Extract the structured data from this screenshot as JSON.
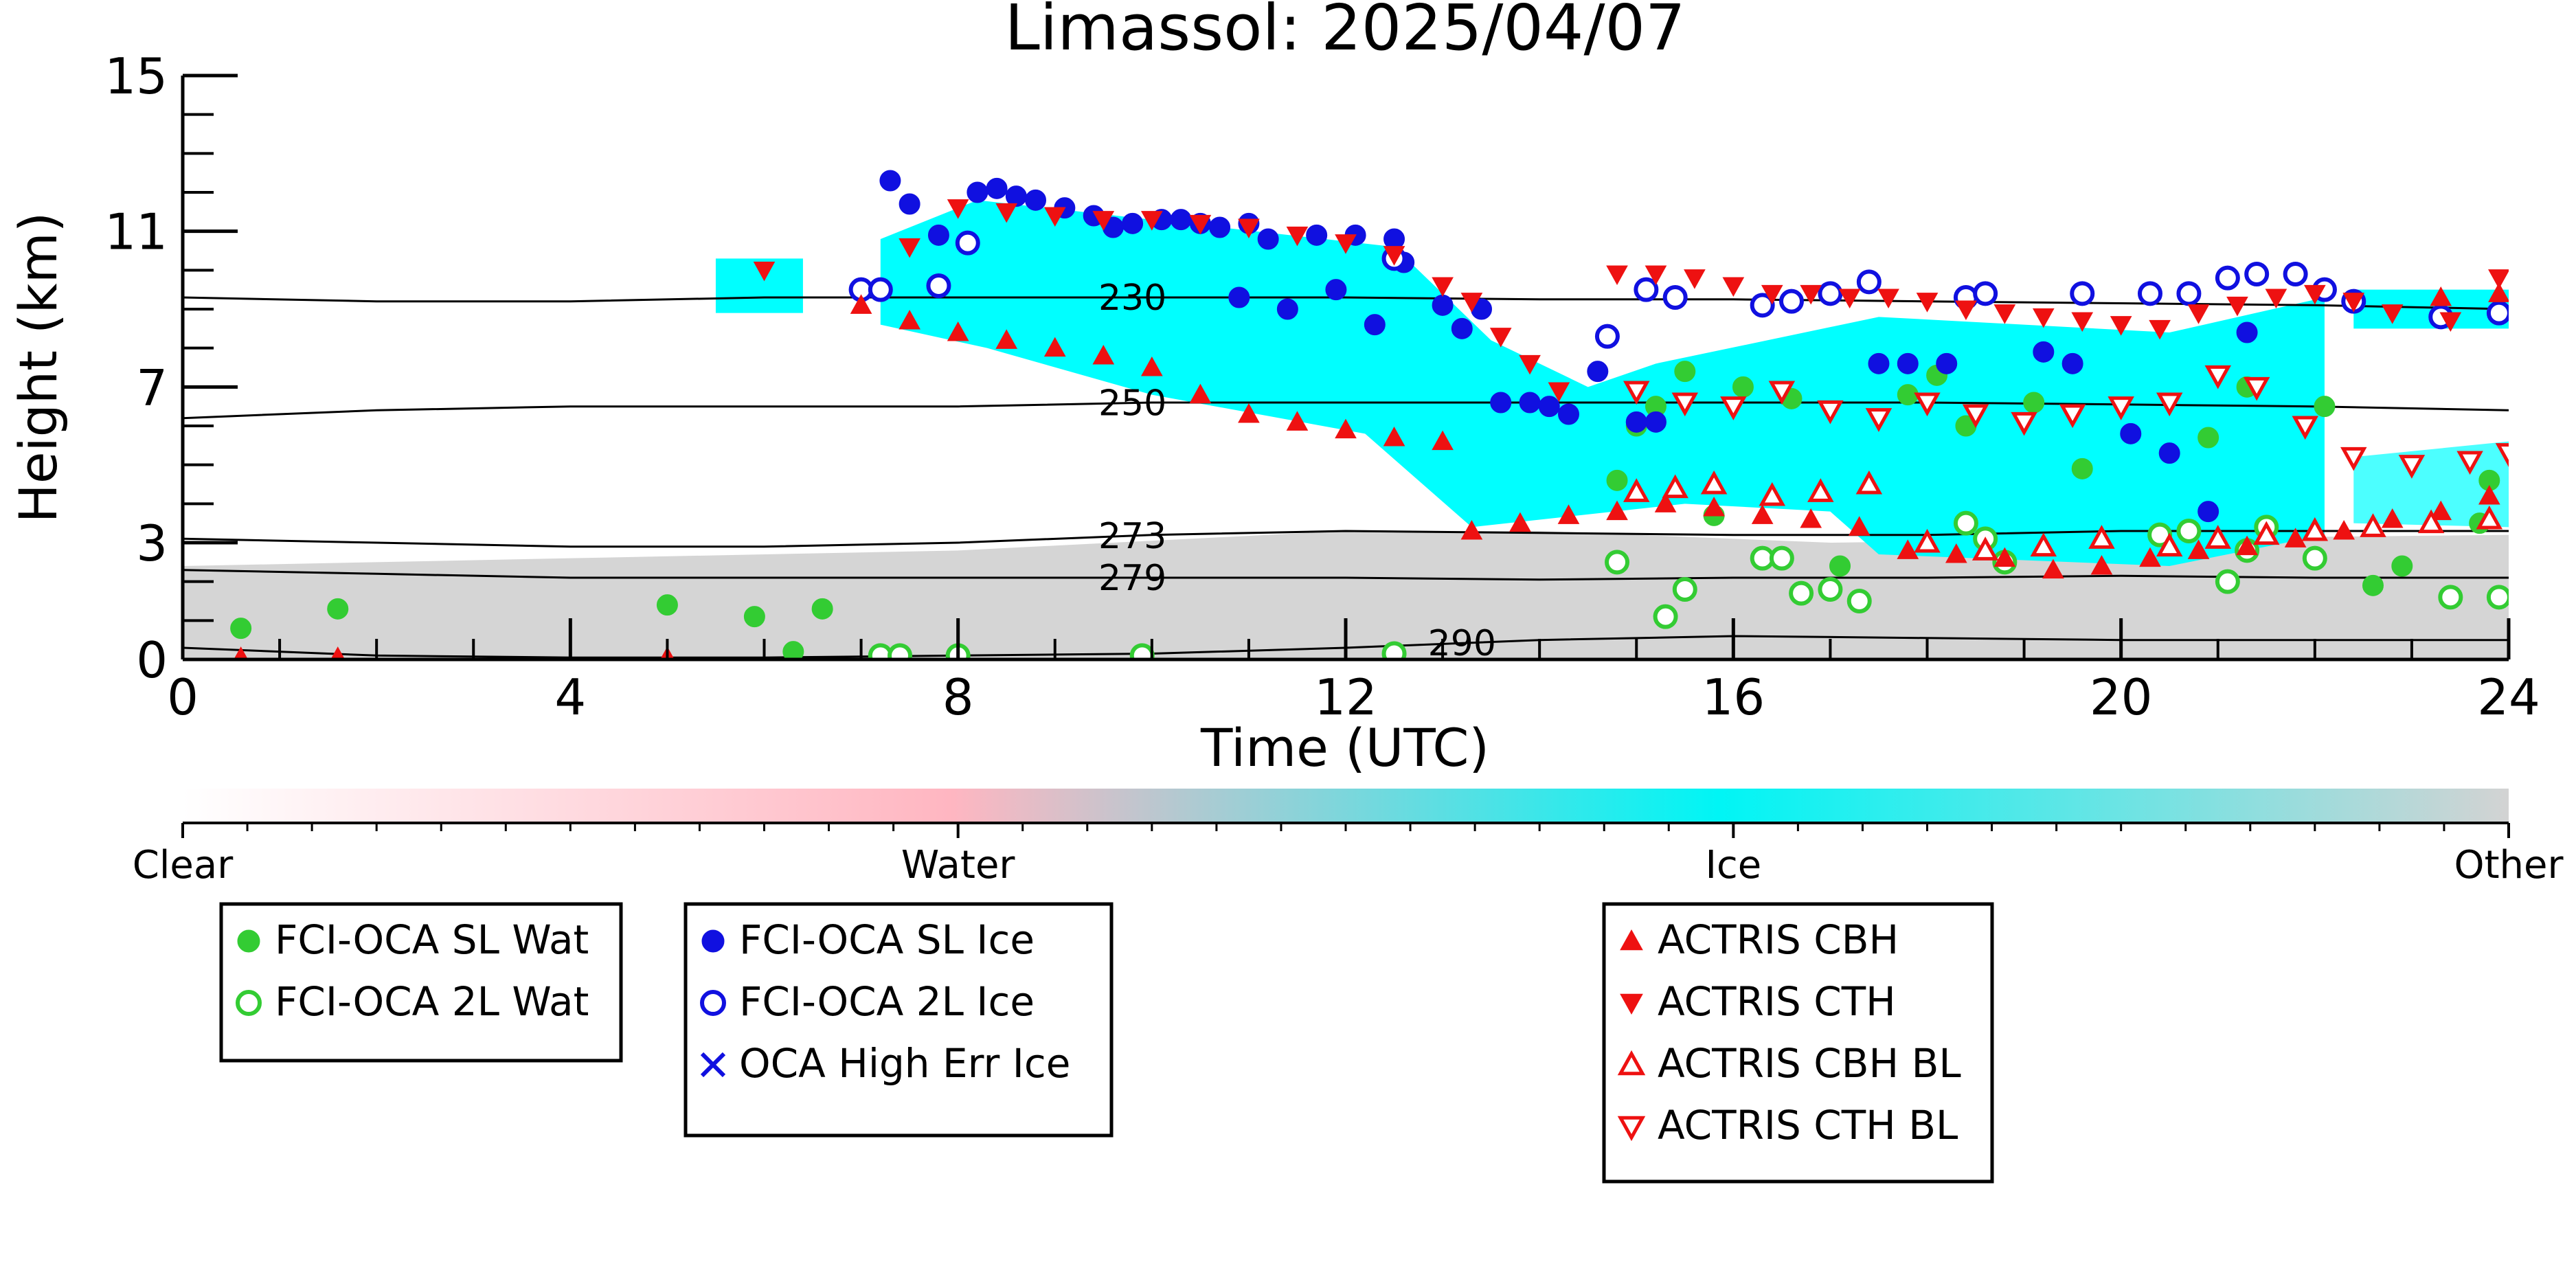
{
  "chart_data": {
    "type": "scatter",
    "title": "Limassol: 2025/04/07",
    "xlabel": "Time (UTC)",
    "ylabel": "Height (km)",
    "xlim": [
      0,
      24
    ],
    "ylim": [
      0,
      15
    ],
    "x_ticks": [
      "0",
      "4",
      "8",
      "12",
      "16",
      "20",
      "24"
    ],
    "y_ticks": [
      "0",
      "3",
      "7",
      "11",
      "15"
    ],
    "grid": false,
    "colorbar": {
      "labels": [
        "Clear",
        "Water",
        "Ice",
        "Other"
      ],
      "colors": [
        "#ffffff",
        "#ffb6c1",
        "#00ffff",
        "#d3d3d3"
      ]
    },
    "contours": [
      {
        "label": "230",
        "label_x": 9.8,
        "x": [
          0,
          2,
          4,
          6,
          8,
          10,
          12,
          14,
          16,
          18,
          20,
          22,
          24
        ],
        "y": [
          9.3,
          9.2,
          9.2,
          9.3,
          9.3,
          9.3,
          9.3,
          9.25,
          9.25,
          9.2,
          9.15,
          9.1,
          9.0
        ]
      },
      {
        "label": "250",
        "label_x": 9.8,
        "x": [
          0,
          2,
          4,
          6,
          8,
          10,
          12,
          14,
          16,
          18,
          20,
          22,
          24
        ],
        "y": [
          6.2,
          6.4,
          6.5,
          6.5,
          6.5,
          6.6,
          6.6,
          6.6,
          6.6,
          6.6,
          6.55,
          6.5,
          6.4
        ]
      },
      {
        "label": "273",
        "label_x": 9.8,
        "x": [
          0,
          2,
          4,
          6,
          8,
          10,
          12,
          14,
          16,
          18,
          20,
          22,
          24
        ],
        "y": [
          3.1,
          3.0,
          2.9,
          2.9,
          3.0,
          3.2,
          3.3,
          3.25,
          3.2,
          3.2,
          3.3,
          3.3,
          3.3
        ]
      },
      {
        "label": "279",
        "label_x": 9.8,
        "x": [
          0,
          2,
          4,
          6,
          8,
          10,
          12,
          14,
          16,
          18,
          20,
          22,
          24
        ],
        "y": [
          2.3,
          2.2,
          2.1,
          2.1,
          2.1,
          2.1,
          2.1,
          2.05,
          2.1,
          2.1,
          2.15,
          2.1,
          2.1
        ]
      },
      {
        "label": "290",
        "label_x": 13.2,
        "x": [
          0,
          2,
          4,
          6,
          8,
          10,
          12,
          14,
          16,
          18,
          20,
          22,
          24
        ],
        "y": [
          0.3,
          0.1,
          0.05,
          0.05,
          0.1,
          0.15,
          0.3,
          0.5,
          0.6,
          0.55,
          0.5,
          0.5,
          0.5
        ]
      }
    ],
    "series": [
      {
        "name": "FCI-OCA SL Wat",
        "color": "#33cc33",
        "marker": "circle-filled",
        "points": [
          [
            0.6,
            0.8
          ],
          [
            1.6,
            1.3
          ],
          [
            5.0,
            1.4
          ],
          [
            5.9,
            1.1
          ],
          [
            6.3,
            0.2
          ],
          [
            6.6,
            1.3
          ],
          [
            14.8,
            4.6
          ],
          [
            15.0,
            6.0
          ],
          [
            15.2,
            6.5
          ],
          [
            15.5,
            7.4
          ],
          [
            15.8,
            3.7
          ],
          [
            16.1,
            7.0
          ],
          [
            16.6,
            6.7
          ],
          [
            17.1,
            2.4
          ],
          [
            17.8,
            6.8
          ],
          [
            18.1,
            7.3
          ],
          [
            18.4,
            6.0
          ],
          [
            19.1,
            6.6
          ],
          [
            19.6,
            4.9
          ],
          [
            20.9,
            5.7
          ],
          [
            21.3,
            7.0
          ],
          [
            22.1,
            6.5
          ],
          [
            22.6,
            1.9
          ],
          [
            22.9,
            2.4
          ],
          [
            23.7,
            3.5
          ],
          [
            23.8,
            4.6
          ]
        ]
      },
      {
        "name": "FCI-OCA 2L Wat",
        "color": "#33cc33",
        "marker": "circle-open",
        "points": [
          [
            7.2,
            0.1
          ],
          [
            7.4,
            0.1
          ],
          [
            8.0,
            0.1
          ],
          [
            9.9,
            0.1
          ],
          [
            12.5,
            0.15
          ],
          [
            14.8,
            2.5
          ],
          [
            15.3,
            1.1
          ],
          [
            15.5,
            1.8
          ],
          [
            16.3,
            2.6
          ],
          [
            16.5,
            2.6
          ],
          [
            16.7,
            1.7
          ],
          [
            17.0,
            1.8
          ],
          [
            17.3,
            1.5
          ],
          [
            18.4,
            3.5
          ],
          [
            18.6,
            3.1
          ],
          [
            18.8,
            2.5
          ],
          [
            20.4,
            3.2
          ],
          [
            20.7,
            3.3
          ],
          [
            21.1,
            2.0
          ],
          [
            21.3,
            2.8
          ],
          [
            21.5,
            3.4
          ],
          [
            22.0,
            2.6
          ],
          [
            23.4,
            1.6
          ],
          [
            23.9,
            1.6
          ]
        ]
      },
      {
        "name": "FCI-OCA SL Ice",
        "color": "#1010e0",
        "marker": "circle-filled",
        "points": [
          [
            7.3,
            12.3
          ],
          [
            7.5,
            11.7
          ],
          [
            7.8,
            10.9
          ],
          [
            8.2,
            12.0
          ],
          [
            8.4,
            12.1
          ],
          [
            8.6,
            11.9
          ],
          [
            8.8,
            11.8
          ],
          [
            9.1,
            11.6
          ],
          [
            9.4,
            11.4
          ],
          [
            9.6,
            11.1
          ],
          [
            9.8,
            11.2
          ],
          [
            10.1,
            11.3
          ],
          [
            10.3,
            11.3
          ],
          [
            10.5,
            11.2
          ],
          [
            10.7,
            11.1
          ],
          [
            10.9,
            9.3
          ],
          [
            11.0,
            11.2
          ],
          [
            11.2,
            10.8
          ],
          [
            11.4,
            9.0
          ],
          [
            11.7,
            10.9
          ],
          [
            11.9,
            9.5
          ],
          [
            12.1,
            10.9
          ],
          [
            12.3,
            8.6
          ],
          [
            12.5,
            10.8
          ],
          [
            12.6,
            10.2
          ],
          [
            13.0,
            9.1
          ],
          [
            13.2,
            8.5
          ],
          [
            13.4,
            9.0
          ],
          [
            13.6,
            6.6
          ],
          [
            13.9,
            6.6
          ],
          [
            14.1,
            6.5
          ],
          [
            14.3,
            6.3
          ],
          [
            14.6,
            7.4
          ],
          [
            15.0,
            6.1
          ],
          [
            15.2,
            6.1
          ],
          [
            17.5,
            7.6
          ],
          [
            17.8,
            7.6
          ],
          [
            18.2,
            7.6
          ],
          [
            19.2,
            7.9
          ],
          [
            19.5,
            7.6
          ],
          [
            20.1,
            5.8
          ],
          [
            20.5,
            5.3
          ],
          [
            20.9,
            3.8
          ],
          [
            21.3,
            8.4
          ]
        ]
      },
      {
        "name": "FCI-OCA 2L Ice",
        "color": "#1010e0",
        "marker": "circle-open",
        "points": [
          [
            7.0,
            9.5
          ],
          [
            7.2,
            9.5
          ],
          [
            7.8,
            9.6
          ],
          [
            8.1,
            10.7
          ],
          [
            12.5,
            10.3
          ],
          [
            14.7,
            8.3
          ],
          [
            15.1,
            9.5
          ],
          [
            15.4,
            9.3
          ],
          [
            16.3,
            9.1
          ],
          [
            16.6,
            9.2
          ],
          [
            17.0,
            9.4
          ],
          [
            17.4,
            9.7
          ],
          [
            18.4,
            9.3
          ],
          [
            18.6,
            9.4
          ],
          [
            19.6,
            9.4
          ],
          [
            20.3,
            9.4
          ],
          [
            20.7,
            9.4
          ],
          [
            21.1,
            9.8
          ],
          [
            21.4,
            9.9
          ],
          [
            21.8,
            9.9
          ],
          [
            22.1,
            9.5
          ],
          [
            22.4,
            9.2
          ],
          [
            23.3,
            8.8
          ],
          [
            23.9,
            8.9
          ]
        ]
      },
      {
        "name": "OCA High Err Ice",
        "color": "#1010e0",
        "marker": "x",
        "points": []
      },
      {
        "name": "ACTRIS CBH",
        "color": "#ee1111",
        "marker": "triangle-up-filled",
        "points": [
          [
            0.6,
            0.05
          ],
          [
            1.6,
            0.05
          ],
          [
            5.0,
            0.05
          ],
          [
            7.0,
            9.1
          ],
          [
            7.5,
            8.7
          ],
          [
            8.0,
            8.4
          ],
          [
            8.5,
            8.2
          ],
          [
            9.0,
            8.0
          ],
          [
            9.5,
            7.8
          ],
          [
            10.0,
            7.5
          ],
          [
            10.5,
            6.8
          ],
          [
            11.0,
            6.3
          ],
          [
            11.5,
            6.1
          ],
          [
            12.0,
            5.9
          ],
          [
            12.5,
            5.7
          ],
          [
            13.0,
            5.6
          ],
          [
            13.3,
            3.3
          ],
          [
            13.8,
            3.5
          ],
          [
            14.3,
            3.7
          ],
          [
            14.8,
            3.8
          ],
          [
            15.3,
            4.0
          ],
          [
            15.8,
            3.9
          ],
          [
            16.3,
            3.7
          ],
          [
            16.8,
            3.6
          ],
          [
            17.3,
            3.4
          ],
          [
            17.8,
            2.8
          ],
          [
            18.3,
            2.7
          ],
          [
            18.8,
            2.6
          ],
          [
            19.3,
            2.3
          ],
          [
            19.8,
            2.4
          ],
          [
            20.3,
            2.6
          ],
          [
            20.8,
            2.8
          ],
          [
            21.3,
            2.9
          ],
          [
            21.8,
            3.1
          ],
          [
            22.3,
            3.3
          ],
          [
            22.8,
            3.6
          ],
          [
            23.3,
            3.8
          ],
          [
            23.8,
            4.2
          ],
          [
            23.3,
            9.3
          ],
          [
            23.9,
            9.4
          ]
        ]
      },
      {
        "name": "ACTRIS CTH",
        "color": "#ee1111",
        "marker": "triangle-down-filled",
        "points": [
          [
            6.0,
            10.0
          ],
          [
            7.5,
            10.6
          ],
          [
            8.0,
            11.6
          ],
          [
            8.5,
            11.5
          ],
          [
            9.0,
            11.4
          ],
          [
            9.5,
            11.3
          ],
          [
            10.0,
            11.3
          ],
          [
            10.5,
            11.2
          ],
          [
            11.0,
            11.1
          ],
          [
            11.5,
            10.9
          ],
          [
            12.0,
            10.7
          ],
          [
            12.5,
            10.4
          ],
          [
            13.0,
            9.6
          ],
          [
            13.3,
            9.2
          ],
          [
            13.6,
            8.3
          ],
          [
            13.9,
            7.6
          ],
          [
            14.2,
            6.9
          ],
          [
            14.8,
            9.9
          ],
          [
            15.2,
            9.9
          ],
          [
            15.6,
            9.8
          ],
          [
            16.0,
            9.6
          ],
          [
            16.4,
            9.4
          ],
          [
            16.8,
            9.4
          ],
          [
            17.2,
            9.3
          ],
          [
            17.6,
            9.3
          ],
          [
            18.0,
            9.2
          ],
          [
            18.4,
            9.0
          ],
          [
            18.8,
            8.9
          ],
          [
            19.2,
            8.8
          ],
          [
            19.6,
            8.7
          ],
          [
            20.0,
            8.6
          ],
          [
            20.4,
            8.5
          ],
          [
            20.8,
            8.9
          ],
          [
            21.2,
            9.1
          ],
          [
            21.6,
            9.3
          ],
          [
            22.0,
            9.4
          ],
          [
            22.4,
            9.2
          ],
          [
            22.8,
            8.9
          ],
          [
            23.4,
            8.7
          ],
          [
            23.9,
            9.8
          ]
        ]
      },
      {
        "name": "ACTRIS CBH BL",
        "color": "#ee1111",
        "marker": "triangle-up-open",
        "points": [
          [
            15.0,
            4.3
          ],
          [
            15.4,
            4.4
          ],
          [
            15.8,
            4.5
          ],
          [
            16.4,
            4.2
          ],
          [
            16.9,
            4.3
          ],
          [
            17.4,
            4.5
          ],
          [
            18.0,
            3.0
          ],
          [
            18.6,
            2.8
          ],
          [
            19.2,
            2.9
          ],
          [
            19.8,
            3.1
          ],
          [
            20.5,
            2.9
          ],
          [
            21.0,
            3.1
          ],
          [
            21.5,
            3.2
          ],
          [
            22.0,
            3.3
          ],
          [
            22.6,
            3.4
          ],
          [
            23.2,
            3.5
          ],
          [
            23.8,
            3.6
          ]
        ]
      },
      {
        "name": "ACTRIS CTH BL",
        "color": "#ee1111",
        "marker": "triangle-down-open",
        "points": [
          [
            15.0,
            6.9
          ],
          [
            15.5,
            6.6
          ],
          [
            16.0,
            6.5
          ],
          [
            16.5,
            6.9
          ],
          [
            17.0,
            6.4
          ],
          [
            17.5,
            6.2
          ],
          [
            18.0,
            6.6
          ],
          [
            18.5,
            6.3
          ],
          [
            19.0,
            6.1
          ],
          [
            19.5,
            6.3
          ],
          [
            20.0,
            6.5
          ],
          [
            20.5,
            6.6
          ],
          [
            21.0,
            7.3
          ],
          [
            21.4,
            7.0
          ],
          [
            21.9,
            6.0
          ],
          [
            22.4,
            5.2
          ],
          [
            23.0,
            5.0
          ],
          [
            23.6,
            5.1
          ],
          [
            24.0,
            5.3
          ]
        ]
      }
    ],
    "legends": [
      {
        "entries": [
          "FCI-OCA SL Wat",
          "FCI-OCA 2L Wat"
        ]
      },
      {
        "entries": [
          "FCI-OCA SL Ice",
          "FCI-OCA 2L Ice",
          "OCA High Err Ice"
        ]
      },
      {
        "entries": [
          "ACTRIS CBH",
          "ACTRIS CTH",
          "ACTRIS CBH BL",
          "ACTRIS CTH BL"
        ]
      }
    ]
  }
}
